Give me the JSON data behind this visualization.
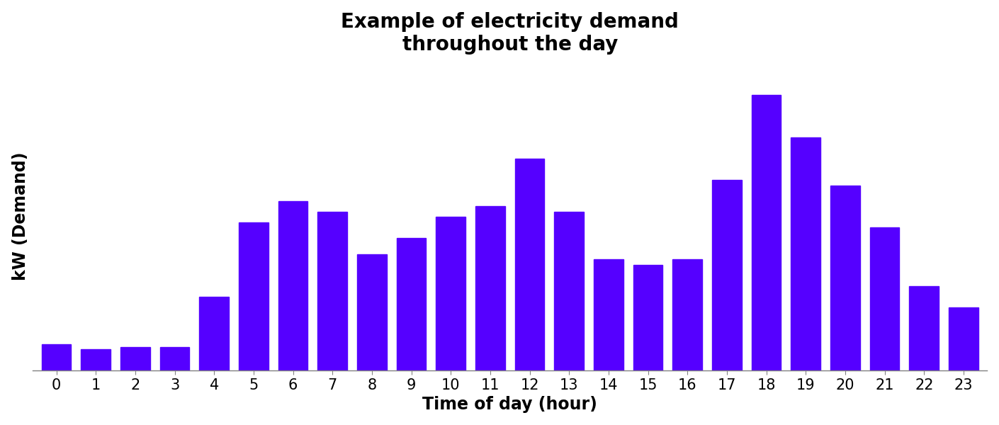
{
  "title": "Example of electricity demand\nthroughout the day",
  "xlabel": "Time of day (hour)",
  "ylabel": "kW (Demand)",
  "hours": [
    0,
    1,
    2,
    3,
    4,
    5,
    6,
    7,
    8,
    9,
    10,
    11,
    12,
    13,
    14,
    15,
    16,
    17,
    18,
    19,
    20,
    21,
    22,
    23
  ],
  "values": [
    5,
    4,
    4.5,
    4.5,
    14,
    28,
    32,
    30,
    22,
    25,
    29,
    31,
    40,
    30,
    21,
    20,
    21,
    36,
    52,
    44,
    35,
    27,
    16,
    12
  ],
  "bar_color": "#5500ff",
  "background_color": "#ffffff",
  "title_fontsize": 20,
  "label_fontsize": 17,
  "tick_fontsize": 15,
  "bar_width": 0.75
}
